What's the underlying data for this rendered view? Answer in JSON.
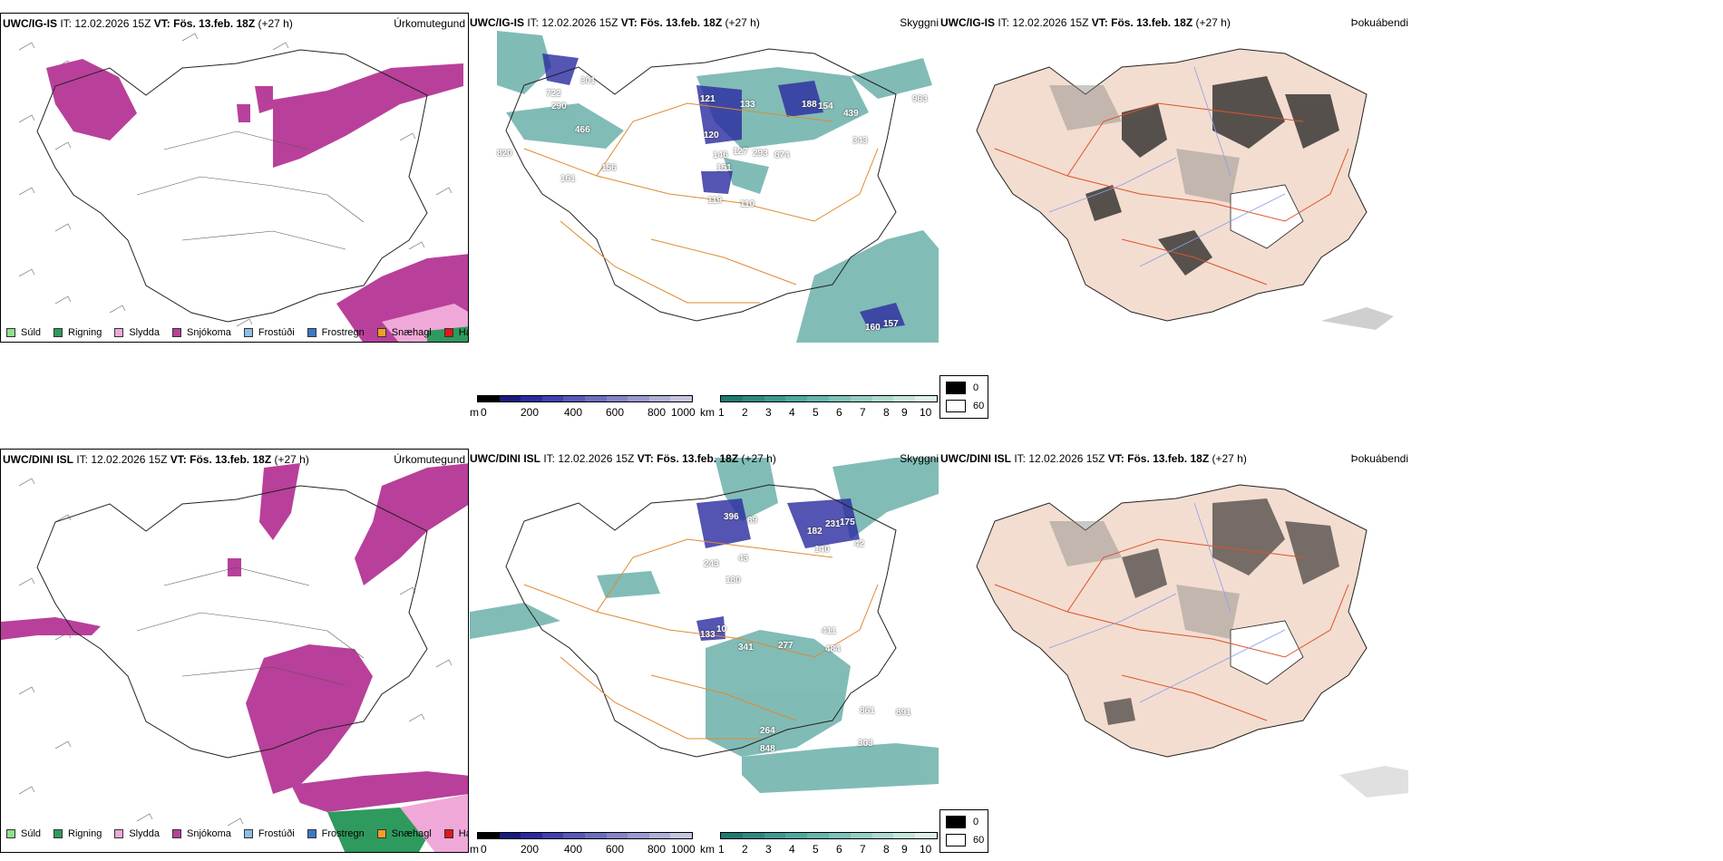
{
  "rows": [
    {
      "model": "UWC/IG-IS",
      "it_label": "IT:",
      "it_value": "12.02.2026 15Z",
      "vt_label": "VT:",
      "vt_value": "Fös. 13.feb. 18Z",
      "lead": "(+27 h)",
      "titles": {
        "precip": "Úrkomutegund",
        "cloud": "Skyggni",
        "fog": "Þokuábendi"
      },
      "cloud_labels": [
        "722",
        "290",
        "301",
        "466",
        "820",
        "156",
        "161",
        "121",
        "120",
        "133",
        "146",
        "151",
        "127",
        "293",
        "874",
        "188",
        "154",
        "439",
        "343",
        "963",
        "119",
        "110",
        "160",
        "157"
      ]
    },
    {
      "model": "UWC/DINI ISL",
      "it_label": "IT:",
      "it_value": "12.02.2026 15Z",
      "vt_label": "VT:",
      "vt_value": "Fös. 13.feb. 18Z",
      "lead": "(+27 h)",
      "titles": {
        "precip": "Úrkomutegund",
        "cloud": "Skyggni",
        "fog": "Þokuábendi"
      },
      "cloud_labels": [
        "396",
        "89",
        "182",
        "231",
        "175",
        "140",
        "42",
        "243",
        "43",
        "180",
        "133",
        "10",
        "341",
        "277",
        "411",
        "484",
        "861",
        "891",
        "264",
        "848",
        "303"
      ]
    }
  ],
  "precip_legend": [
    {
      "label": "Súld",
      "color": "#8fe08a"
    },
    {
      "label": "Rigning",
      "color": "#2f9a5e"
    },
    {
      "label": "Slydda",
      "color": "#f0a8d8"
    },
    {
      "label": "Snjókoma",
      "color": "#b8409a"
    },
    {
      "label": "Frostúði",
      "color": "#8cbfe8"
    },
    {
      "label": "Frostregn",
      "color": "#3a78c8"
    },
    {
      "label": "Snæhagl",
      "color": "#f0a020"
    },
    {
      "label": "Haglél",
      "color": "#e01818"
    }
  ],
  "ceiling_scale": {
    "unit": "m",
    "ticks": [
      "0",
      "200",
      "400",
      "600",
      "800",
      "1000"
    ],
    "colors": [
      "#000000",
      "#1a1a80",
      "#2a2aa0",
      "#4040b0",
      "#5858b8",
      "#6e6ec0",
      "#8484c8",
      "#9a9ad0",
      "#b0b0d8",
      "#c6c6e0"
    ]
  },
  "visibility_scale": {
    "unit": "km",
    "ticks": [
      "1",
      "2",
      "3",
      "4",
      "5",
      "6",
      "7",
      "8",
      "9",
      "10"
    ],
    "colors": [
      "#1e7a70",
      "#2e8a80",
      "#3e9a90",
      "#4eaaa0",
      "#66b6ac",
      "#7ec2b8",
      "#96cec4",
      "#aedad0",
      "#c6e6dc",
      "#def2ea"
    ]
  },
  "fog_legend": [
    {
      "label": "0",
      "color": "#000000"
    },
    {
      "label": "60",
      "color": "#ffffff"
    }
  ],
  "colors": {
    "snow": "#b8409a",
    "rain": "#2f9a5e",
    "sleet": "#f0a8d8",
    "cloud_teal": "#2f8f86",
    "ceiling_blue": "#2a2aa0",
    "road_orange": "#e08a30",
    "fog_land": "#f3ddd0",
    "road_red": "#e0502a"
  }
}
